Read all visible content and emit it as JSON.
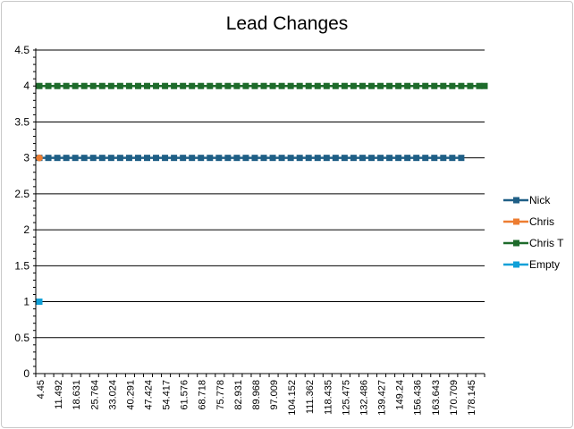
{
  "chart_data": {
    "type": "line",
    "title": "Lead Changes",
    "xlabel": "",
    "ylabel": "",
    "ylim": [
      0,
      4.5
    ],
    "yticks": [
      "0",
      "0.5",
      "1",
      "1.5",
      "2",
      "2.5",
      "3",
      "3.5",
      "4",
      "4.5"
    ],
    "x_tick_labels": [
      "4.45",
      "11.492",
      "18.631",
      "25.764",
      "33.024",
      "40.291",
      "47.424",
      "54.417",
      "61.576",
      "68.718",
      "75.778",
      "82.931",
      "89.968",
      "97.009",
      "104.152",
      "111.362",
      "118.435",
      "125.475",
      "132.486",
      "139.427",
      "149.24",
      "156.436",
      "163.643",
      "170.709",
      "178.145"
    ],
    "x_category_count": 50,
    "grid": true,
    "legend_position": "right",
    "series": [
      {
        "name": "Nick",
        "color": "#1f5f86",
        "marker": "square",
        "start_index": 0,
        "end_index": 47,
        "value": 3
      },
      {
        "name": "Chris",
        "color": "#ed7d31",
        "marker": "circle",
        "start_index": 0,
        "end_index": 0,
        "value": 3
      },
      {
        "name": "Chris T",
        "color": "#1e6b2b",
        "marker": "square",
        "start_index": 0,
        "end_index": 50,
        "value": 4
      },
      {
        "name": "Empty",
        "color": "#0fa0d8",
        "marker": "square",
        "start_index": 0,
        "end_index": 0,
        "value": 1
      }
    ]
  }
}
